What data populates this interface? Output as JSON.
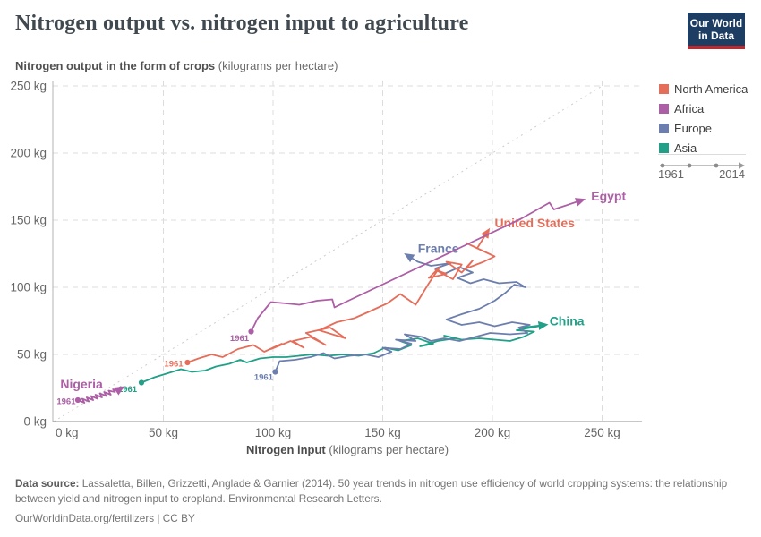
{
  "header": {
    "title": "Nitrogen output vs. nitrogen input to agriculture",
    "logo": {
      "line1": "Our World",
      "line2": "in Data",
      "bg_color": "#1d3d63",
      "bar_color": "#c0282f"
    }
  },
  "subtitle": {
    "bold": "Nitrogen output in the form of crops",
    "normal": " (kilograms per hectare)"
  },
  "legend": {
    "items": [
      {
        "label": "North America",
        "color": "#e56e5a"
      },
      {
        "label": "Africa",
        "color": "#ad5fa6"
      },
      {
        "label": "Europe",
        "color": "#6c7ead"
      },
      {
        "label": "Asia",
        "color": "#21a087"
      }
    ],
    "timeline": {
      "start": "1961",
      "end": "2014"
    }
  },
  "chart_data": {
    "type": "line",
    "subtype": "connected-scatter",
    "title": "Nitrogen output vs. nitrogen input to agriculture",
    "xlabel": "Nitrogen input",
    "xlabel_unit": " (kilograms per hectare)",
    "ylabel": "Nitrogen output in the form of crops",
    "ylabel_unit": " (kilograms per hectare)",
    "xlim": [
      0,
      268
    ],
    "ylim": [
      0,
      250
    ],
    "grid": true,
    "legend_position": "right",
    "diagonal_reference": "y = x",
    "x_ticks": [
      {
        "v": 0,
        "label": "0 kg"
      },
      {
        "v": 50,
        "label": "50 kg"
      },
      {
        "v": 100,
        "label": "100 kg"
      },
      {
        "v": 150,
        "label": "150 kg"
      },
      {
        "v": 200,
        "label": "200 kg"
      },
      {
        "v": 250,
        "label": "250 kg"
      }
    ],
    "y_ticks": [
      {
        "v": 0,
        "label": "0 kg"
      },
      {
        "v": 50,
        "label": "50 kg"
      },
      {
        "v": 100,
        "label": "100 kg"
      },
      {
        "v": 150,
        "label": "150 kg"
      },
      {
        "v": 200,
        "label": "200 kg"
      },
      {
        "v": 250,
        "label": "250 kg"
      }
    ],
    "series": [
      {
        "name": "China",
        "region": "Asia",
        "color": "#21a087",
        "arrow": true,
        "start_year": "1961",
        "label": {
          "text": "China",
          "x": 226,
          "y": 75,
          "anchor": "start"
        },
        "year_label": {
          "text": "1961",
          "x": 38,
          "y": 24,
          "anchor": "end"
        },
        "points": [
          [
            40,
            29
          ],
          [
            46,
            33
          ],
          [
            52,
            36
          ],
          [
            58,
            39
          ],
          [
            63,
            37
          ],
          [
            69,
            38
          ],
          [
            74,
            41
          ],
          [
            80,
            43
          ],
          [
            85,
            46
          ],
          [
            88,
            44
          ],
          [
            94,
            47
          ],
          [
            100,
            48
          ],
          [
            106,
            48
          ],
          [
            112,
            49
          ],
          [
            118,
            50
          ],
          [
            125,
            49
          ],
          [
            132,
            50
          ],
          [
            139,
            49
          ],
          [
            146,
            51
          ],
          [
            151,
            55
          ],
          [
            157,
            53
          ],
          [
            163,
            57
          ],
          [
            158,
            60
          ],
          [
            166,
            62
          ],
          [
            173,
            58
          ],
          [
            167,
            56
          ],
          [
            175,
            60
          ],
          [
            183,
            62
          ],
          [
            178,
            64
          ],
          [
            186,
            61
          ],
          [
            194,
            62
          ],
          [
            201,
            61
          ],
          [
            208,
            60
          ],
          [
            214,
            63
          ],
          [
            219,
            67
          ],
          [
            211,
            68
          ],
          [
            221,
            71
          ],
          [
            214,
            70
          ],
          [
            224,
            72
          ]
        ]
      },
      {
        "name": "France",
        "region": "Europe",
        "color": "#6c7ead",
        "arrow": true,
        "start_year": "1961",
        "label": {
          "text": "France",
          "x": 166,
          "y": 129,
          "anchor": "start"
        },
        "year_label": {
          "text": "1961",
          "x": 100,
          "y": 33,
          "anchor": "end"
        },
        "points": [
          [
            101,
            37
          ],
          [
            103,
            45
          ],
          [
            110,
            46
          ],
          [
            117,
            48
          ],
          [
            123,
            51
          ],
          [
            128,
            47
          ],
          [
            135,
            49
          ],
          [
            142,
            50
          ],
          [
            148,
            48
          ],
          [
            154,
            52
          ],
          [
            150,
            55
          ],
          [
            158,
            54
          ],
          [
            163,
            58
          ],
          [
            156,
            61
          ],
          [
            165,
            60
          ],
          [
            160,
            65
          ],
          [
            168,
            63
          ],
          [
            172,
            60
          ],
          [
            178,
            62
          ],
          [
            185,
            60
          ],
          [
            192,
            63
          ],
          [
            199,
            66
          ],
          [
            208,
            65
          ],
          [
            216,
            66
          ],
          [
            212,
            70
          ],
          [
            217,
            72
          ],
          [
            209,
            74
          ],
          [
            201,
            71
          ],
          [
            194,
            74
          ],
          [
            186,
            72
          ],
          [
            179,
            76
          ],
          [
            186,
            80
          ],
          [
            194,
            84
          ],
          [
            201,
            90
          ],
          [
            206,
            96
          ],
          [
            210,
            102
          ],
          [
            215,
            100
          ],
          [
            211,
            104
          ],
          [
            203,
            103
          ],
          [
            196,
            106
          ],
          [
            190,
            103
          ],
          [
            184,
            107
          ],
          [
            191,
            111
          ],
          [
            185,
            115
          ],
          [
            178,
            110
          ],
          [
            174,
            114
          ],
          [
            181,
            118
          ],
          [
            172,
            116
          ],
          [
            166,
            119
          ],
          [
            161,
            124
          ]
        ]
      },
      {
        "name": "United States",
        "region": "North America",
        "color": "#e56e5a",
        "arrow": true,
        "start_year": "1961",
        "label": {
          "text": "United States",
          "x": 201,
          "y": 148,
          "anchor": "start"
        },
        "year_label": {
          "text": "1961",
          "x": 59,
          "y": 43,
          "anchor": "end"
        },
        "points": [
          [
            61,
            44
          ],
          [
            66,
            47
          ],
          [
            72,
            50
          ],
          [
            77,
            48
          ],
          [
            84,
            54
          ],
          [
            91,
            57
          ],
          [
            96,
            52
          ],
          [
            104,
            58
          ],
          [
            99,
            54
          ],
          [
            108,
            60
          ],
          [
            114,
            55
          ],
          [
            109,
            60
          ],
          [
            117,
            63
          ],
          [
            124,
            57
          ],
          [
            115,
            66
          ],
          [
            126,
            70
          ],
          [
            133,
            62
          ],
          [
            121,
            68
          ],
          [
            129,
            74
          ],
          [
            137,
            77
          ],
          [
            144,
            82
          ],
          [
            152,
            88
          ],
          [
            158,
            95
          ],
          [
            165,
            87
          ],
          [
            171,
            103
          ],
          [
            176,
            115
          ],
          [
            171,
            107
          ],
          [
            179,
            110
          ],
          [
            174,
            113
          ],
          [
            182,
            106
          ],
          [
            186,
            117
          ],
          [
            179,
            119
          ],
          [
            186,
            111
          ],
          [
            191,
            120
          ],
          [
            188,
            114
          ],
          [
            196,
            119
          ],
          [
            201,
            123
          ],
          [
            188,
            133
          ],
          [
            193,
            129
          ],
          [
            198,
            142
          ]
        ]
      },
      {
        "name": "Nigeria",
        "region": "Africa",
        "color": "#ad5fa6",
        "arrow": true,
        "start_year": "1961",
        "label": {
          "text": "Nigeria",
          "x": 3,
          "y": 28,
          "anchor": "start"
        },
        "year_label": {
          "text": "1961",
          "x": 10,
          "y": 15,
          "anchor": "end"
        },
        "points": [
          [
            11,
            16
          ],
          [
            14,
            14
          ],
          [
            13,
            17
          ],
          [
            16,
            15
          ],
          [
            15,
            18
          ],
          [
            18,
            16
          ],
          [
            17,
            19
          ],
          [
            20,
            17
          ],
          [
            19,
            20
          ],
          [
            22,
            18
          ],
          [
            21,
            21
          ],
          [
            24,
            19
          ],
          [
            23,
            22
          ],
          [
            26,
            20
          ],
          [
            25,
            23
          ],
          [
            28,
            22
          ],
          [
            27,
            24
          ],
          [
            29,
            23
          ],
          [
            31,
            25
          ]
        ]
      },
      {
        "name": "Egypt",
        "region": "Africa",
        "color": "#ad5fa6",
        "arrow": true,
        "start_year": "1961",
        "label": {
          "text": "Egypt",
          "x": 245,
          "y": 168,
          "anchor": "start"
        },
        "year_label": {
          "text": "1961",
          "x": 89,
          "y": 62,
          "anchor": "end"
        },
        "points": [
          [
            90,
            67
          ],
          [
            93,
            77
          ],
          [
            99,
            89
          ],
          [
            106,
            88
          ],
          [
            112,
            87
          ],
          [
            120,
            90
          ],
          [
            127,
            91
          ],
          [
            128,
            85
          ],
          [
            133,
            89
          ],
          [
            213,
            151
          ],
          [
            226,
            163
          ],
          [
            228,
            158
          ],
          [
            241,
            165
          ]
        ]
      }
    ]
  },
  "footer": {
    "source_label": "Data source:",
    "source_text": " Lassaletta, Billen, Grizzetti, Anglade & Garnier (2014). 50 year trends in nitrogen use efficiency of world cropping systems: the relationship between yield and nitrogen input to cropland. Environmental Research Letters.",
    "license": "OurWorldinData.org/fertilizers | CC BY"
  }
}
